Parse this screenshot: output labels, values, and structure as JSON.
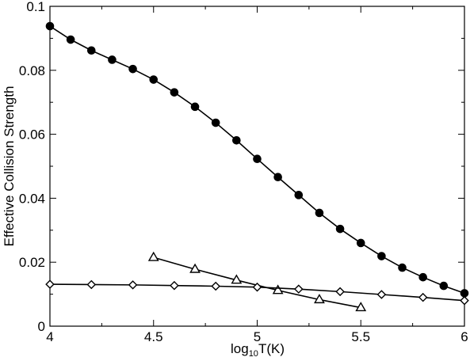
{
  "chart_data": {
    "type": "line",
    "xlabel_main": "log",
    "xlabel_sub": "10",
    "xlabel_tail": "T(K)",
    "ylabel": "Effective Collision Strength",
    "xlim": [
      4,
      6
    ],
    "ylim": [
      0,
      0.1
    ],
    "xticks": [
      4,
      4.5,
      5,
      5.5,
      6
    ],
    "xtick_labels": [
      "4",
      "4.5",
      "5",
      "5.5",
      "6"
    ],
    "yticks": [
      0,
      0.02,
      0.04,
      0.06,
      0.08,
      0.1
    ],
    "ytick_labels": [
      "0",
      "0.02",
      "0.04",
      "0.06",
      "0.08",
      "0.1"
    ],
    "grid": false,
    "series": [
      {
        "marker": "circle-filled",
        "color": "#000000",
        "x": [
          4.0,
          4.1,
          4.2,
          4.3,
          4.4,
          4.5,
          4.6,
          4.7,
          4.8,
          4.9,
          5.0,
          5.1,
          5.2,
          5.3,
          5.4,
          5.5,
          5.6,
          5.7,
          5.8,
          5.9,
          6.0
        ],
        "y": [
          0.0938,
          0.0896,
          0.0862,
          0.0833,
          0.0804,
          0.0771,
          0.0731,
          0.0686,
          0.0636,
          0.0581,
          0.0523,
          0.0466,
          0.041,
          0.0354,
          0.0304,
          0.026,
          0.0219,
          0.0183,
          0.0153,
          0.0126,
          0.0103
        ]
      },
      {
        "marker": "triangle-open",
        "color": "#000000",
        "x": [
          4.5,
          4.7,
          4.9,
          5.1,
          5.3,
          5.5
        ],
        "y": [
          0.0215,
          0.0178,
          0.0144,
          0.0112,
          0.0083,
          0.0058
        ]
      },
      {
        "marker": "diamond-open",
        "color": "#000000",
        "x": [
          4.0,
          4.2,
          4.4,
          4.6,
          4.8,
          5.0,
          5.2,
          5.4,
          5.6,
          5.8,
          6.0
        ],
        "y": [
          0.0131,
          0.013,
          0.0129,
          0.0127,
          0.0125,
          0.0122,
          0.0116,
          0.0108,
          0.0099,
          0.009,
          0.008
        ]
      }
    ]
  }
}
